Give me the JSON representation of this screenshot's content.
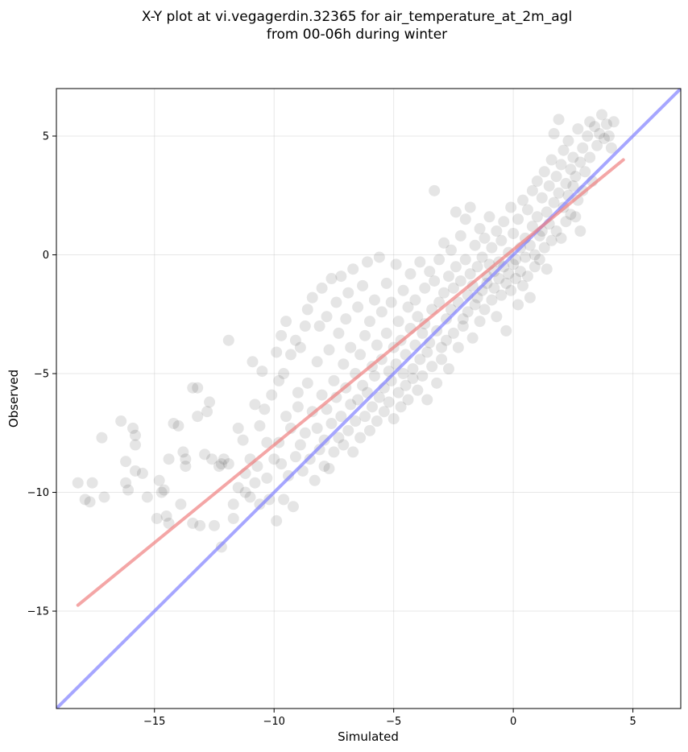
{
  "chart_data": {
    "type": "scatter",
    "title": "X-Y plot at vi.vegagerdin.32365 for air_temperature_at_2m_agl",
    "subtitle": "from 00-06h during winter",
    "xlabel": "Simulated",
    "ylabel": "Observed",
    "xlim": [
      -19.1,
      7.0
    ],
    "ylim": [
      -19.1,
      7.0
    ],
    "xticks": [
      -15,
      -10,
      -5,
      0,
      5
    ],
    "yticks": [
      -15,
      -10,
      -5,
      0,
      5
    ],
    "xtick_labels": [
      "−15",
      "−10",
      "−5",
      "0",
      "5"
    ],
    "ytick_labels": [
      "−15",
      "−10",
      "−5",
      "0",
      "5"
    ],
    "grid": true,
    "point_color": "#000000",
    "point_alpha": 0.1,
    "fit_line": {
      "x": [
        -18.2,
        4.6
      ],
      "y": [
        -14.75,
        4.0
      ],
      "color": "#f08080"
    },
    "identity_line": {
      "x": [
        -19.1,
        7.0
      ],
      "y": [
        -19.1,
        7.0
      ],
      "color": "#8080ff"
    },
    "points": [
      [
        -18.2,
        -9.6
      ],
      [
        -17.9,
        -10.3
      ],
      [
        -17.7,
        -10.4
      ],
      [
        -17.6,
        -9.6
      ],
      [
        -17.2,
        -7.7
      ],
      [
        -17.1,
        -10.2
      ],
      [
        -16.4,
        -7.0
      ],
      [
        -16.2,
        -8.7
      ],
      [
        -16.2,
        -9.6
      ],
      [
        -16.1,
        -9.9
      ],
      [
        -15.9,
        -7.3
      ],
      [
        -15.8,
        -7.6
      ],
      [
        -15.8,
        -8.0
      ],
      [
        -15.8,
        -9.1
      ],
      [
        -15.5,
        -9.2
      ],
      [
        -15.3,
        -10.2
      ],
      [
        -14.9,
        -11.1
      ],
      [
        -14.8,
        -9.5
      ],
      [
        -14.7,
        -10.0
      ],
      [
        -14.6,
        -9.9
      ],
      [
        -14.5,
        -11.0
      ],
      [
        -14.4,
        -11.3
      ],
      [
        -14.4,
        -8.6
      ],
      [
        -14.2,
        -7.1
      ],
      [
        -14.0,
        -7.2
      ],
      [
        -13.9,
        -10.5
      ],
      [
        -13.8,
        -8.3
      ],
      [
        -13.7,
        -8.9
      ],
      [
        -13.7,
        -8.6
      ],
      [
        -13.4,
        -5.6
      ],
      [
        -13.4,
        -11.3
      ],
      [
        -13.2,
        -5.6
      ],
      [
        -13.2,
        -6.8
      ],
      [
        -13.1,
        -11.4
      ],
      [
        -12.9,
        -8.4
      ],
      [
        -12.8,
        -6.6
      ],
      [
        -12.7,
        -6.2
      ],
      [
        -12.6,
        -8.6
      ],
      [
        -12.5,
        -11.4
      ],
      [
        -12.3,
        -8.9
      ],
      [
        -12.2,
        -8.8
      ],
      [
        -12.2,
        -12.3
      ],
      [
        -12.1,
        -8.6
      ],
      [
        -11.9,
        -3.6
      ],
      [
        -11.9,
        -8.8
      ],
      [
        -11.7,
        -10.5
      ],
      [
        -11.7,
        -11.1
      ],
      [
        -11.5,
        -7.3
      ],
      [
        -11.5,
        -9.8
      ],
      [
        -11.3,
        -7.8
      ],
      [
        -11.2,
        -9.2
      ],
      [
        -11.2,
        -10.0
      ],
      [
        -11.0,
        -8.6
      ],
      [
        -11.0,
        -10.2
      ],
      [
        -10.9,
        -4.5
      ],
      [
        -10.8,
        -6.3
      ],
      [
        -10.8,
        -9.6
      ],
      [
        -10.7,
        -8.9
      ],
      [
        -10.6,
        -7.2
      ],
      [
        -10.6,
        -10.5
      ],
      [
        -10.5,
        -4.9
      ],
      [
        -10.4,
        -6.5
      ],
      [
        -10.3,
        -7.9
      ],
      [
        -10.3,
        -9.4
      ],
      [
        -10.2,
        -10.3
      ],
      [
        -10.1,
        -5.9
      ],
      [
        -10.0,
        -8.6
      ],
      [
        -9.9,
        -4.1
      ],
      [
        -9.9,
        -11.2
      ],
      [
        -9.8,
        -5.3
      ],
      [
        -9.8,
        -7.9
      ],
      [
        -9.7,
        -3.4
      ],
      [
        -9.7,
        -8.8
      ],
      [
        -9.6,
        -5.0
      ],
      [
        -9.6,
        -10.3
      ],
      [
        -9.5,
        -2.8
      ],
      [
        -9.5,
        -6.8
      ],
      [
        -9.4,
        -9.3
      ],
      [
        -9.3,
        -4.2
      ],
      [
        -9.3,
        -7.3
      ],
      [
        -9.2,
        -10.6
      ],
      [
        -9.1,
        -3.6
      ],
      [
        -9.1,
        -8.5
      ],
      [
        -9.0,
        -5.8
      ],
      [
        -9.0,
        -6.4
      ],
      [
        -8.9,
        -3.9
      ],
      [
        -8.9,
        -8.0
      ],
      [
        -8.8,
        -9.1
      ],
      [
        -8.7,
        -3.0
      ],
      [
        -8.7,
        -7.5
      ],
      [
        -8.6,
        -2.3
      ],
      [
        -8.6,
        -5.4
      ],
      [
        -8.5,
        -8.6
      ],
      [
        -8.4,
        -1.8
      ],
      [
        -8.4,
        -6.6
      ],
      [
        -8.3,
        -9.5
      ],
      [
        -8.2,
        -4.5
      ],
      [
        -8.2,
        -7.3
      ],
      [
        -8.1,
        -3.0
      ],
      [
        -8.1,
        -8.2
      ],
      [
        -8.0,
        -1.4
      ],
      [
        -8.0,
        -5.9
      ],
      [
        -7.9,
        -7.8
      ],
      [
        -7.9,
        -8.9
      ],
      [
        -7.8,
        -2.6
      ],
      [
        -7.8,
        -6.5
      ],
      [
        -7.7,
        -4.0
      ],
      [
        -7.7,
        -9.0
      ],
      [
        -7.6,
        -1.0
      ],
      [
        -7.6,
        -7.1
      ],
      [
        -7.5,
        -5.3
      ],
      [
        -7.5,
        -8.3
      ],
      [
        -7.4,
        -2.0
      ],
      [
        -7.4,
        -6.0
      ],
      [
        -7.3,
        -3.3
      ],
      [
        -7.3,
        -7.7
      ],
      [
        -7.2,
        -0.9
      ],
      [
        -7.2,
        -6.8
      ],
      [
        -7.1,
        -4.6
      ],
      [
        -7.1,
        -8.0
      ],
      [
        -7.0,
        -2.7
      ],
      [
        -7.0,
        -5.6
      ],
      [
        -6.9,
        -7.4
      ],
      [
        -6.9,
        -1.6
      ],
      [
        -6.8,
        -6.3
      ],
      [
        -6.8,
        -3.9
      ],
      [
        -6.7,
        -8.3
      ],
      [
        -6.7,
        -0.6
      ],
      [
        -6.6,
        -5.0
      ],
      [
        -6.6,
        -7.0
      ],
      [
        -6.5,
        -2.2
      ],
      [
        -6.5,
        -6.1
      ],
      [
        -6.4,
        -4.2
      ],
      [
        -6.4,
        -7.7
      ],
      [
        -6.3,
        -1.3
      ],
      [
        -6.3,
        -5.5
      ],
      [
        -6.2,
        -3.4
      ],
      [
        -6.2,
        -6.8
      ],
      [
        -6.1,
        -0.3
      ],
      [
        -6.1,
        -5.8
      ],
      [
        -6.0,
        -2.8
      ],
      [
        -6.0,
        -7.4
      ],
      [
        -5.9,
        -4.7
      ],
      [
        -5.9,
        -6.4
      ],
      [
        -5.8,
        -1.9
      ],
      [
        -5.8,
        -5.1
      ],
      [
        -5.7,
        -3.8
      ],
      [
        -5.7,
        -7.0
      ],
      [
        -5.6,
        -0.1
      ],
      [
        -5.6,
        -6.0
      ],
      [
        -5.5,
        -2.4
      ],
      [
        -5.5,
        -4.4
      ],
      [
        -5.4,
        -5.6
      ],
      [
        -5.4,
        -6.6
      ],
      [
        -5.3,
        -1.2
      ],
      [
        -5.3,
        -3.3
      ],
      [
        -5.2,
        -4.9
      ],
      [
        -5.2,
        -6.2
      ],
      [
        -5.1,
        -2.0
      ],
      [
        -5.1,
        -5.3
      ],
      [
        -5.0,
        -3.9
      ],
      [
        -5.0,
        -6.9
      ],
      [
        -4.9,
        -0.4
      ],
      [
        -4.9,
        -4.6
      ],
      [
        -4.8,
        -5.8
      ],
      [
        -4.8,
        -2.8
      ],
      [
        -4.7,
        -3.6
      ],
      [
        -4.7,
        -6.4
      ],
      [
        -4.6,
        -1.5
      ],
      [
        -4.6,
        -5.0
      ],
      [
        -4.5,
        -4.2
      ],
      [
        -4.5,
        -5.5
      ],
      [
        -4.4,
        -2.2
      ],
      [
        -4.4,
        -6.1
      ],
      [
        -4.3,
        -0.8
      ],
      [
        -4.3,
        -3.1
      ],
      [
        -4.2,
        -4.8
      ],
      [
        -4.2,
        -5.2
      ],
      [
        -4.1,
        -1.9
      ],
      [
        -4.1,
        -3.8
      ],
      [
        -4.0,
        -2.6
      ],
      [
        -4.0,
        -5.7
      ],
      [
        -3.9,
        -0.3
      ],
      [
        -3.9,
        -4.4
      ],
      [
        -3.8,
        -3.3
      ],
      [
        -3.8,
        -5.1
      ],
      [
        -3.7,
        -1.4
      ],
      [
        -3.7,
        -2.9
      ],
      [
        -3.6,
        -4.1
      ],
      [
        -3.6,
        -6.1
      ],
      [
        -3.5,
        -0.7
      ],
      [
        -3.5,
        -3.7
      ],
      [
        -3.4,
        -2.3
      ],
      [
        -3.4,
        -4.7
      ],
      [
        -3.3,
        2.7
      ],
      [
        -3.3,
        -1.1
      ],
      [
        -3.2,
        -3.2
      ],
      [
        -3.2,
        -5.4
      ],
      [
        -3.1,
        -0.2
      ],
      [
        -3.1,
        -2.0
      ],
      [
        -3.0,
        -3.9
      ],
      [
        -3.0,
        -4.4
      ],
      [
        -2.9,
        0.5
      ],
      [
        -2.9,
        -1.6
      ],
      [
        -2.8,
        -2.7
      ],
      [
        -2.8,
        -3.6
      ],
      [
        -2.7,
        -0.9
      ],
      [
        -2.7,
        -4.8
      ],
      [
        -2.6,
        0.2
      ],
      [
        -2.6,
        -2.3
      ],
      [
        -2.5,
        -1.4
      ],
      [
        -2.5,
        -3.3
      ],
      [
        -2.4,
        1.8
      ],
      [
        -2.4,
        -0.5
      ],
      [
        -2.3,
        -2.0
      ],
      [
        -2.3,
        -3.9
      ],
      [
        -2.2,
        0.8
      ],
      [
        -2.2,
        -1.1
      ],
      [
        -2.1,
        -2.7
      ],
      [
        -2.1,
        -3.0
      ],
      [
        -2.0,
        1.5
      ],
      [
        -2.0,
        -0.2
      ],
      [
        -1.9,
        -1.7
      ],
      [
        -1.9,
        -2.4
      ],
      [
        -1.8,
        2.0
      ],
      [
        -1.8,
        -0.8
      ],
      [
        -1.7,
        -1.3
      ],
      [
        -1.7,
        -3.5
      ],
      [
        -1.6,
        0.4
      ],
      [
        -1.6,
        -2.1
      ],
      [
        -1.5,
        -0.5
      ],
      [
        -1.5,
        -1.8
      ],
      [
        -1.4,
        1.1
      ],
      [
        -1.4,
        -2.8
      ],
      [
        -1.3,
        -0.1
      ],
      [
        -1.3,
        -1.5
      ],
      [
        -1.2,
        0.7
      ],
      [
        -1.2,
        -2.3
      ],
      [
        -1.1,
        -0.9
      ],
      [
        -1.1,
        -1.2
      ],
      [
        -1.0,
        1.6
      ],
      [
        -1.0,
        -0.4
      ],
      [
        -0.9,
        -1.9
      ],
      [
        -0.9,
        0.3
      ],
      [
        -0.8,
        -0.7
      ],
      [
        -0.8,
        -1.4
      ],
      [
        -0.7,
        1.0
      ],
      [
        -0.7,
        -2.6
      ],
      [
        -0.6,
        -0.3
      ],
      [
        -0.6,
        -1.0
      ],
      [
        -0.5,
        0.6
      ],
      [
        -0.5,
        -1.7
      ],
      [
        -0.4,
        -0.5
      ],
      [
        -0.4,
        1.4
      ],
      [
        -0.3,
        -1.2
      ],
      [
        -0.3,
        -3.2
      ],
      [
        -0.2,
        0.1
      ],
      [
        -0.2,
        -0.8
      ],
      [
        -0.1,
        2.0
      ],
      [
        -0.1,
        -1.5
      ],
      [
        0.0,
        -0.4
      ],
      [
        0.0,
        0.9
      ],
      [
        0.1,
        -1.0
      ],
      [
        0.1,
        -0.2
      ],
      [
        0.2,
        1.5
      ],
      [
        0.2,
        -2.1
      ],
      [
        0.3,
        0.3
      ],
      [
        0.3,
        -0.7
      ],
      [
        0.4,
        2.3
      ],
      [
        0.4,
        -1.3
      ],
      [
        0.5,
        0.7
      ],
      [
        0.5,
        -0.1
      ],
      [
        0.6,
        1.9
      ],
      [
        0.6,
        -0.9
      ],
      [
        0.7,
        0.4
      ],
      [
        0.7,
        -1.8
      ],
      [
        0.8,
        2.7
      ],
      [
        0.8,
        1.2
      ],
      [
        0.9,
        0.0
      ],
      [
        0.9,
        -0.5
      ],
      [
        1.0,
        3.1
      ],
      [
        1.0,
        1.6
      ],
      [
        1.1,
        0.8
      ],
      [
        1.1,
        -0.2
      ],
      [
        1.2,
        2.4
      ],
      [
        1.2,
        1.0
      ],
      [
        1.3,
        3.5
      ],
      [
        1.3,
        0.3
      ],
      [
        1.4,
        1.8
      ],
      [
        1.4,
        -0.6
      ],
      [
        1.5,
        2.9
      ],
      [
        1.5,
        1.3
      ],
      [
        1.6,
        4.0
      ],
      [
        1.6,
        0.6
      ],
      [
        1.7,
        2.2
      ],
      [
        1.7,
        5.1
      ],
      [
        1.8,
        3.3
      ],
      [
        1.8,
        1.0
      ],
      [
        1.9,
        5.7
      ],
      [
        1.9,
        2.6
      ],
      [
        2.0,
        3.8
      ],
      [
        2.0,
        0.7
      ],
      [
        2.1,
        2.0
      ],
      [
        2.1,
        4.4
      ],
      [
        2.2,
        3.0
      ],
      [
        2.2,
        1.4
      ],
      [
        2.3,
        2.5
      ],
      [
        2.3,
        4.8
      ],
      [
        2.4,
        3.6
      ],
      [
        2.4,
        1.7
      ],
      [
        2.5,
        2.9
      ],
      [
        2.5,
        4.1
      ],
      [
        2.6,
        3.3
      ],
      [
        2.6,
        1.6
      ],
      [
        2.7,
        5.3
      ],
      [
        2.7,
        2.3
      ],
      [
        2.8,
        3.9
      ],
      [
        2.8,
        1.0
      ],
      [
        2.9,
        4.5
      ],
      [
        2.9,
        2.7
      ],
      [
        3.0,
        3.5
      ],
      [
        3.1,
        5.0
      ],
      [
        3.2,
        4.1
      ],
      [
        3.2,
        5.6
      ],
      [
        3.3,
        3.1
      ],
      [
        3.4,
        5.4
      ],
      [
        3.5,
        4.6
      ],
      [
        3.6,
        5.1
      ],
      [
        3.7,
        5.9
      ],
      [
        3.8,
        4.9
      ],
      [
        3.9,
        5.5
      ],
      [
        4.0,
        5.0
      ],
      [
        4.1,
        4.5
      ],
      [
        4.2,
        5.6
      ]
    ]
  }
}
